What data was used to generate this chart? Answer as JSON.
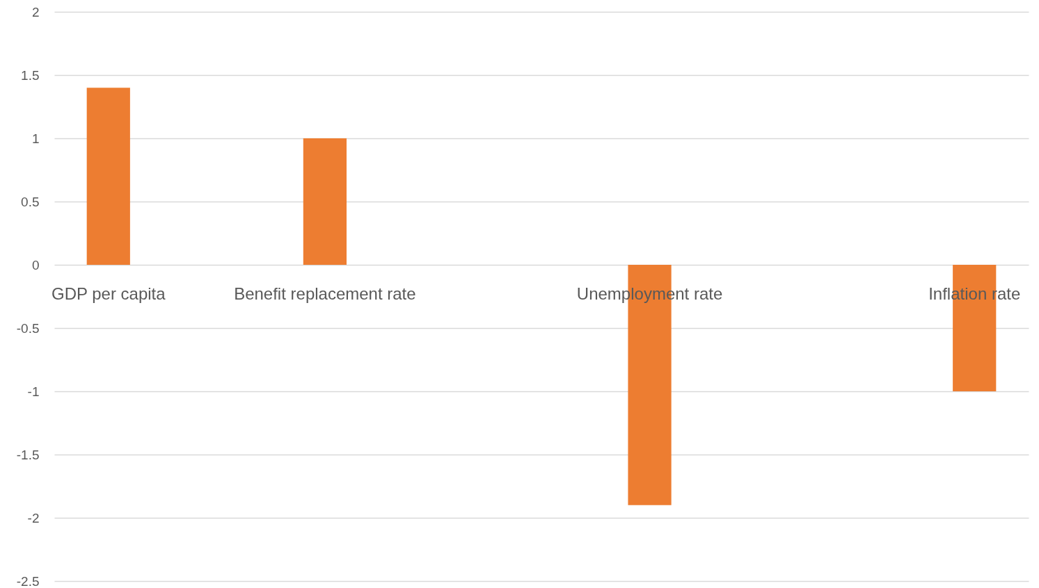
{
  "chart_data": {
    "type": "bar",
    "categories": [
      "GDP per capita",
      null,
      "Benefit replacement rate",
      null,
      null,
      "Unemployment rate",
      null,
      null,
      "Inflation rate"
    ],
    "values": [
      1.4,
      null,
      1,
      null,
      null,
      -1.9,
      null,
      null,
      -1
    ],
    "color": "#ed7d31",
    "ylim": [
      -2.5,
      2
    ],
    "yticks": [
      -2.5,
      -2,
      -1.5,
      -1,
      -0.5,
      0,
      0.5,
      1,
      1.5,
      2
    ],
    "grid": "y"
  }
}
